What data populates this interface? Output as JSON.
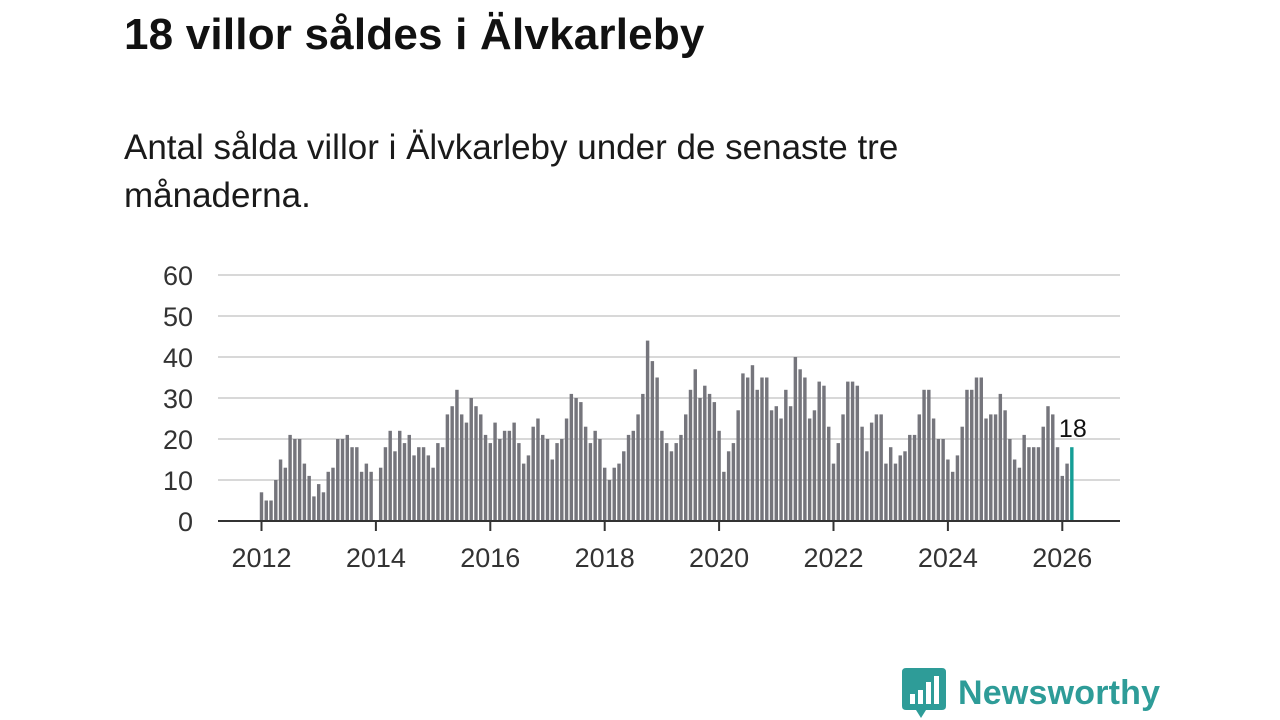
{
  "title": "18 villor såldes i Älvkarleby",
  "subtitle": "Antal sålda villor i Älvkarleby under de senaste tre månaderna.",
  "brand": {
    "name": "Newsworthy",
    "color": "#2e9c98",
    "logo_icon": "bar-chart-speech-bubble-icon"
  },
  "colors": {
    "bar": "#75757c",
    "highlight": "#159e96",
    "grid": "#d8d8d8",
    "axis": "#333333"
  },
  "chart_data": {
    "type": "bar",
    "title": "18 villor såldes i Älvkarleby",
    "xlabel": "",
    "ylabel": "",
    "ylim": [
      0,
      60
    ],
    "yticks": [
      "0",
      "10",
      "20",
      "30",
      "40",
      "50",
      "60"
    ],
    "xticks": [
      "2012",
      "2014",
      "2016",
      "2018",
      "2020",
      "2022",
      "2024",
      "2026"
    ],
    "x_start": "2012-01",
    "values": [
      7,
      5,
      5,
      10,
      15,
      13,
      21,
      20,
      20,
      14,
      11,
      6,
      9,
      7,
      12,
      13,
      20,
      20,
      21,
      18,
      18,
      12,
      14,
      12,
      0,
      13,
      18,
      22,
      17,
      22,
      19,
      21,
      16,
      18,
      18,
      16,
      13,
      19,
      18,
      26,
      28,
      32,
      26,
      24,
      30,
      28,
      26,
      21,
      19,
      24,
      20,
      22,
      22,
      24,
      19,
      14,
      16,
      23,
      25,
      21,
      20,
      15,
      19,
      20,
      25,
      31,
      30,
      29,
      23,
      19,
      22,
      20,
      13,
      10,
      13,
      14,
      17,
      21,
      22,
      26,
      31,
      44,
      39,
      35,
      22,
      19,
      17,
      19,
      21,
      26,
      32,
      37,
      30,
      33,
      31,
      29,
      22,
      12,
      17,
      19,
      27,
      36,
      35,
      38,
      32,
      35,
      35,
      27,
      28,
      25,
      32,
      28,
      40,
      37,
      35,
      25,
      27,
      34,
      33,
      23,
      14,
      19,
      26,
      34,
      34,
      33,
      23,
      17,
      24,
      26,
      26,
      14,
      18,
      14,
      16,
      17,
      21,
      21,
      26,
      32,
      32,
      25,
      20,
      20,
      15,
      12,
      16,
      23,
      32,
      32,
      35,
      35,
      25,
      26,
      26,
      31,
      27,
      20,
      15,
      13,
      21,
      18,
      18,
      18,
      23,
      28,
      26,
      18,
      11,
      14,
      18
    ],
    "highlight": {
      "index": 170,
      "label": "18",
      "value": 18
    }
  }
}
